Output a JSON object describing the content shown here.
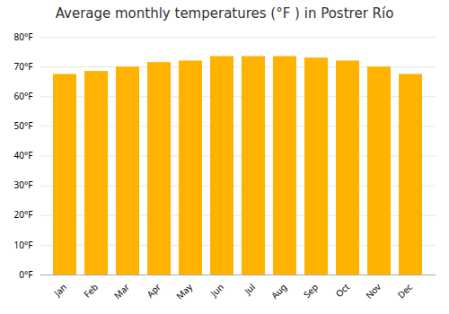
{
  "chart_data": {
    "type": "bar",
    "title": "Average monthly temperatures (°F ) in Postrer Río",
    "categories": [
      "Jan",
      "Feb",
      "Mar",
      "Apr",
      "May",
      "Jun",
      "Jul",
      "Aug",
      "Sep",
      "Oct",
      "Nov",
      "Dec"
    ],
    "values": [
      67.5,
      68.5,
      70.0,
      71.5,
      72.0,
      73.5,
      73.5,
      73.5,
      73.0,
      72.0,
      70.0,
      67.5
    ],
    "color": "#FFB300",
    "ylim": [
      0,
      80
    ],
    "yticks": [
      {
        "value": 0,
        "label": "0°F"
      },
      {
        "value": 10,
        "label": "10°F"
      },
      {
        "value": 20,
        "label": "20°F"
      },
      {
        "value": 30,
        "label": "30°F"
      },
      {
        "value": 40,
        "label": "40°F"
      },
      {
        "value": 50,
        "label": "50°F"
      },
      {
        "value": 60,
        "label": "60°F"
      },
      {
        "value": 70,
        "label": "70°F"
      },
      {
        "value": 80,
        "label": "80°F"
      }
    ],
    "grid": true
  }
}
